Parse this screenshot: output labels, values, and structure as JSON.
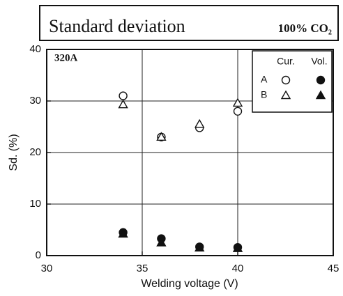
{
  "chart_data": {
    "type": "scatter",
    "title": "Standard deviation",
    "subtitle": "100% CO₂",
    "annotation": "320A",
    "xlabel": "Welding voltage (V)",
    "ylabel": "Sd. (%)",
    "xlim": [
      30,
      45
    ],
    "xticks": [
      30,
      35,
      40,
      45
    ],
    "ylim": [
      0,
      40
    ],
    "yticks": [
      0,
      10,
      20,
      30,
      40
    ],
    "grid": true,
    "legend": "upper right",
    "series": [
      {
        "name": "A",
        "measure": "Cur.",
        "marker": "circle",
        "filled": false,
        "color": "#111",
        "x": [
          34,
          36,
          38,
          40
        ],
        "values": [
          31,
          23,
          24.8,
          28
        ]
      },
      {
        "name": "B",
        "measure": "Cur.",
        "marker": "triangle",
        "filled": false,
        "color": "#111",
        "x": [
          34,
          36,
          38,
          40
        ],
        "values": [
          29.3,
          23,
          25.5,
          29.6
        ]
      },
      {
        "name": "A",
        "measure": "Vol.",
        "marker": "circle",
        "filled": true,
        "color": "#111",
        "x": [
          34,
          36,
          38,
          40
        ],
        "values": [
          4.5,
          3.3,
          1.7,
          1.6
        ]
      },
      {
        "name": "B",
        "measure": "Vol.",
        "marker": "triangle",
        "filled": true,
        "color": "#111",
        "x": [
          34,
          36,
          38,
          40
        ],
        "values": [
          4.2,
          2.5,
          1.5,
          1.4
        ]
      }
    ]
  }
}
